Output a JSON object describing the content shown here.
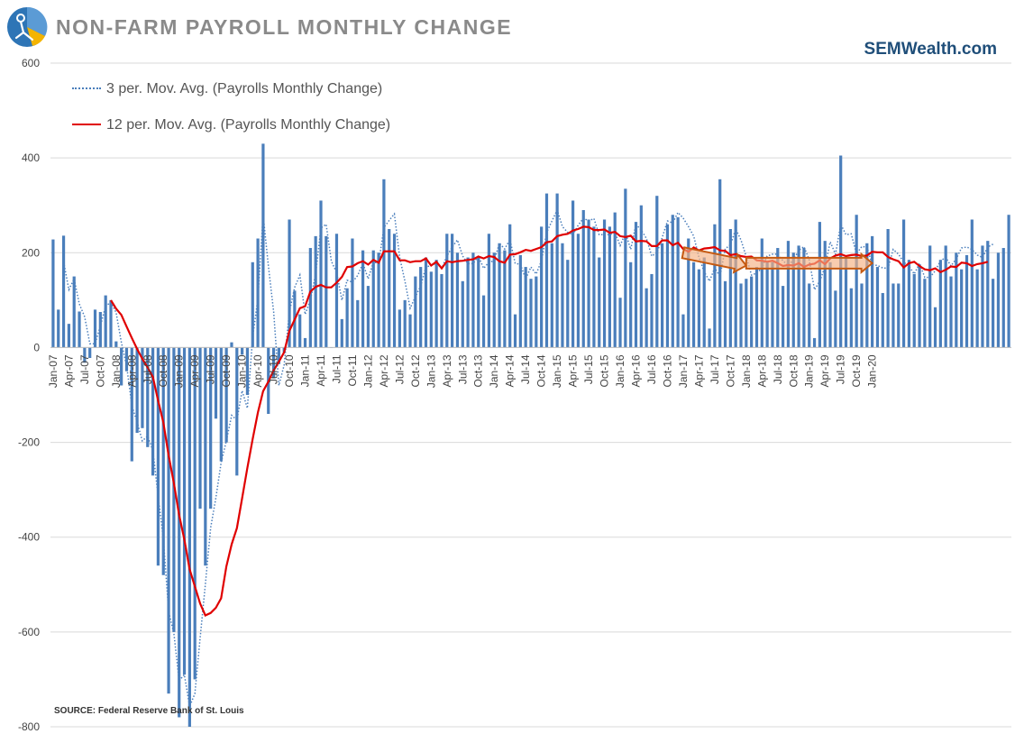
{
  "header": {
    "title": "NON-FARM PAYROLL MONTHLY CHANGE",
    "brand": "SEMWealth.com"
  },
  "footer": {
    "source": "SOURCE:  Federal Reserve Bank of St. Louis"
  },
  "colors": {
    "bars": "#4a7ebb",
    "ma3": "#4a7ebb",
    "ma12": "#e00000",
    "arrow_fill": "#f4b183",
    "arrow_stroke": "#c55a11",
    "grid": "#d9d9d9",
    "title": "#8a8a8a",
    "brand": "#1f4e79"
  },
  "chart_data": {
    "type": "bar",
    "title": "NON-FARM PAYROLL MONTHLY CHANGE",
    "ylim": [
      -800,
      600
    ],
    "yticks": [
      "600",
      "400",
      "200",
      "0",
      "-200",
      "-400",
      "-600",
      "-800"
    ],
    "ytick_values": [
      600,
      400,
      200,
      0,
      -200,
      -400,
      -600,
      -800
    ],
    "grid": true,
    "legend_position": "top-left",
    "start_month": "Jan-07",
    "xtick_labels": [
      "Jan-07",
      "Apr-07",
      "Jul-07",
      "Oct-07",
      "Jan-08",
      "Apr-08",
      "Jul-08",
      "Oct-08",
      "Jan-09",
      "Apr-09",
      "Jul-09",
      "Oct-09",
      "Jan-10",
      "Apr-10",
      "Jul-10",
      "Oct-10",
      "Jan-11",
      "Apr-11",
      "Jul-11",
      "Oct-11",
      "Jan-12",
      "Apr-12",
      "Jul-12",
      "Oct-12",
      "Jan-13",
      "Apr-13",
      "Jul-13",
      "Oct-13",
      "Jan-14",
      "Apr-14",
      "Jul-14",
      "Oct-14",
      "Jan-15",
      "Apr-15",
      "Jul-15",
      "Oct-15",
      "Jan-16",
      "Apr-16",
      "Jul-16",
      "Oct-16",
      "Jan-17",
      "Apr-17",
      "Jul-17",
      "Oct-17",
      "Jan-18",
      "Apr-18",
      "Jul-18",
      "Oct-18",
      "Jan-19",
      "Apr-19",
      "Jul-19",
      "Oct-19",
      "Jan-20"
    ],
    "values": [
      228,
      80,
      236,
      50,
      150,
      76,
      -32,
      -22,
      80,
      75,
      110,
      100,
      13,
      -80,
      -50,
      -240,
      -180,
      -170,
      -210,
      -270,
      -460,
      -480,
      -730,
      -600,
      -780,
      -690,
      -800,
      -700,
      -340,
      -460,
      -340,
      -150,
      -240,
      -200,
      11,
      -270,
      -15,
      -100,
      180,
      230,
      430,
      -140,
      -65,
      -35,
      -10,
      270,
      120,
      70,
      20,
      210,
      235,
      310,
      235,
      0,
      240,
      60,
      125,
      230,
      100,
      205,
      130,
      205,
      200,
      355,
      250,
      240,
      80,
      100,
      70,
      150,
      170,
      190,
      160,
      185,
      155,
      240,
      240,
      200,
      140,
      190,
      200,
      190,
      110,
      240,
      200,
      220,
      205,
      260,
      70,
      195,
      170,
      145,
      150,
      255,
      325,
      220,
      325,
      220,
      185,
      310,
      240,
      290,
      270,
      255,
      190,
      270,
      255,
      285,
      105,
      335,
      180,
      265,
      300,
      125,
      155,
      320,
      220,
      260,
      280,
      275,
      70,
      230,
      180,
      165,
      190,
      40,
      260,
      355,
      140,
      250,
      270,
      135,
      145,
      150,
      170,
      230,
      180,
      180,
      210,
      130,
      225,
      200,
      215,
      210,
      135,
      20,
      265,
      225,
      180,
      120,
      405,
      190,
      125,
      280,
      135,
      220,
      235,
      170,
      115,
      250,
      135,
      135,
      270,
      185,
      155,
      175,
      145,
      215,
      85,
      185,
      215,
      150,
      200,
      165,
      195,
      270,
      165,
      215,
      225,
      145,
      200,
      210,
      280
    ],
    "series": [
      {
        "name": "3 per. Mov. Avg. (Payrolls Monthly Change)",
        "style": "dotted",
        "values": [
          null,
          null,
          181,
          122,
          145,
          92,
          65,
          8,
          8,
          45,
          88,
          95,
          74,
          11,
          -39,
          -123,
          -157,
          -197,
          -187,
          -217,
          -313,
          -403,
          -557,
          -603,
          -703,
          -690,
          -757,
          -730,
          -613,
          -500,
          -380,
          -317,
          -243,
          -197,
          -143,
          -153,
          -91,
          -128,
          22,
          103,
          280,
          173,
          75,
          -80,
          -37,
          75,
          127,
          153,
          70,
          100,
          155,
          252,
          260,
          182,
          158,
          100,
          142,
          138,
          152,
          178,
          145,
          180,
          178,
          253,
          268,
          282,
          190,
          140,
          83,
          107,
          130,
          170,
          173,
          178,
          167,
          193,
          212,
          227,
          193,
          177,
          177,
          193,
          167,
          180,
          183,
          220,
          208,
          228,
          178,
          175,
          145,
          170,
          155,
          183,
          243,
          267,
          290,
          255,
          243,
          238,
          258,
          273,
          267,
          272,
          238,
          238,
          238,
          243,
          215,
          242,
          207,
          260,
          248,
          230,
          193,
          200,
          232,
          267,
          263,
          285,
          273,
          255,
          235,
          190,
          160,
          140,
          168,
          150,
          208,
          217,
          250,
          227,
          192,
          153,
          157,
          168,
          193,
          197,
          197,
          183,
          173,
          185,
          205,
          213,
          185,
          122,
          140,
          170,
          223,
          197,
          260,
          238,
          240,
          198,
          213,
          212,
          175,
          173,
          168,
          167,
          207,
          197,
          180,
          172,
          155,
          178,
          148,
          148,
          162,
          183,
          190,
          172,
          187,
          210,
          212,
          207,
          195,
          190,
          212,
          218
        ]
      },
      {
        "name": "12 per. Mov. Avg. (Payrolls Monthly Change)",
        "style": "solid",
        "values": [
          null,
          null,
          null,
          null,
          null,
          null,
          null,
          null,
          null,
          null,
          null,
          100,
          82,
          69,
          44,
          20,
          -3,
          -24,
          -42,
          -62,
          -112,
          -158,
          -228,
          -286,
          -353,
          -405,
          -468,
          -504,
          -540,
          -565,
          -560,
          -549,
          -529,
          -462,
          -415,
          -381,
          -318,
          -254,
          -193,
          -137,
          -92,
          -72,
          -48,
          -30,
          -10,
          35,
          59,
          83,
          87,
          118,
          128,
          132,
          127,
          127,
          137,
          149,
          170,
          171,
          178,
          182,
          175,
          185,
          179,
          203,
          203,
          203,
          184,
          184,
          180,
          182,
          182,
          188,
          173,
          181,
          167,
          182,
          180,
          182,
          183,
          185,
          186,
          192,
          188,
          193,
          191,
          182,
          179,
          196,
          197,
          201,
          206,
          204,
          208,
          212,
          222,
          224,
          235,
          238,
          240,
          247,
          250,
          255,
          254,
          248,
          248,
          249,
          242,
          244,
          235,
          233,
          236,
          224,
          225,
          224,
          214,
          214,
          226,
          226,
          216,
          221,
          208,
          202,
          211,
          205,
          209,
          210,
          212,
          205,
          204,
          195,
          197,
          193,
          191,
          192,
          184,
          183,
          181,
          183,
          178,
          172,
          174,
          173,
          178,
          170,
          175,
          177,
          184,
          176,
          188,
          194,
          197,
          193,
          195,
          196,
          193,
          194,
          202,
          201,
          201,
          191,
          186,
          182,
          169,
          178,
          181,
          172,
          165,
          163,
          167,
          159,
          164,
          171,
          170,
          179,
          178,
          172,
          176,
          178,
          181
        ]
      }
    ],
    "annotations": [
      {
        "shape": "arrow",
        "from": [
          "Jan-17",
          200
        ],
        "to": [
          "Jan-18",
          173
        ]
      },
      {
        "shape": "arrow",
        "from": [
          "Jan-18",
          178
        ],
        "to": [
          "Jan-20",
          178
        ]
      }
    ]
  }
}
